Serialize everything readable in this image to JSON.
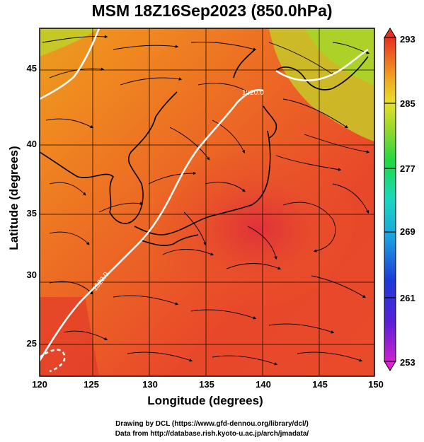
{
  "header": {
    "title": "MSM 18Z16Sep2023 (850.0hPa)"
  },
  "axes": {
    "xlabel": "Longitude (degrees)",
    "ylabel": "Latitude  (degrees)",
    "x_ticks": [
      "120",
      "125",
      "130",
      "135",
      "140",
      "145",
      "150"
    ],
    "y_ticks": [
      "25",
      "30",
      "35",
      "40",
      "45"
    ]
  },
  "colorbar": {
    "labels": [
      "293",
      "285",
      "277",
      "269",
      "261",
      "253"
    ],
    "min": 253,
    "max": 293
  },
  "contours": {
    "label_a": "1520.0",
    "label_b": "1520.0"
  },
  "credits": {
    "line1": "Drawing by DCL (https://www.gfd-dennou.org/library/dcl/)",
    "line2": "Data from http://database.rish.kyoto-u.ac.jp/arch/jmadata/"
  },
  "colors": {
    "warm": "#e8442a",
    "hot": "#d42a2a",
    "mild": "#f0861e",
    "cool": "#9bd82a"
  }
}
